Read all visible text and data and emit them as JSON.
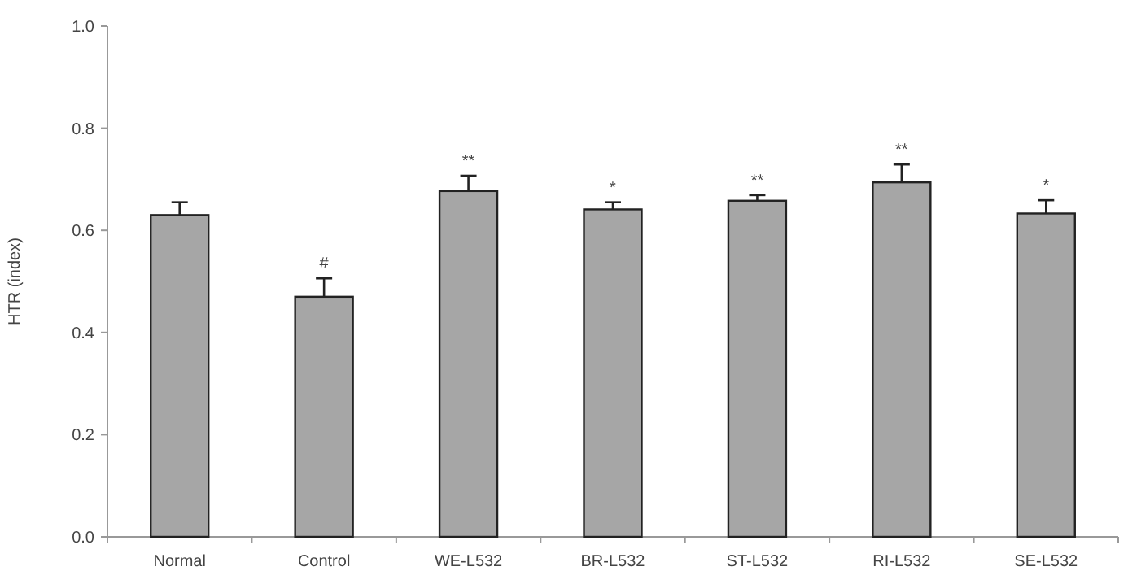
{
  "chart_data": {
    "type": "bar",
    "ylabel": "HTR (index)",
    "categories": [
      "Normal",
      "Control",
      "WE-L532",
      "BR-L532",
      "ST-L532",
      "RI-L532",
      "SE-L532"
    ],
    "values": [
      0.63,
      0.47,
      0.677,
      0.641,
      0.658,
      0.694,
      0.633
    ],
    "errors": [
      0.025,
      0.036,
      0.03,
      0.014,
      0.011,
      0.035,
      0.026
    ],
    "color": "#a6a6a6",
    "ylim": [
      0,
      1.0
    ],
    "yticks": [
      {
        "value": 0,
        "label": "0.0"
      },
      {
        "value": 0.2,
        "label": "0.2"
      },
      {
        "value": 0.4,
        "label": "0.4"
      },
      {
        "value": 0.6,
        "label": "0.6"
      },
      {
        "value": 0.8,
        "label": "0.8"
      },
      {
        "value": 1.0,
        "label": "1.0"
      }
    ],
    "grid": false,
    "annotations": [
      {
        "text": "#",
        "x": "Control",
        "y": 0.506
      },
      {
        "text": "**",
        "x": "WE-L532",
        "y": 0.707
      },
      {
        "text": "*",
        "x": "BR-L532",
        "y": 0.655
      },
      {
        "text": "**",
        "x": "ST-L532",
        "y": 0.669
      },
      {
        "text": "**",
        "x": "RI-L532",
        "y": 0.729
      },
      {
        "text": "*",
        "x": "SE-L532",
        "y": 0.659
      }
    ]
  }
}
